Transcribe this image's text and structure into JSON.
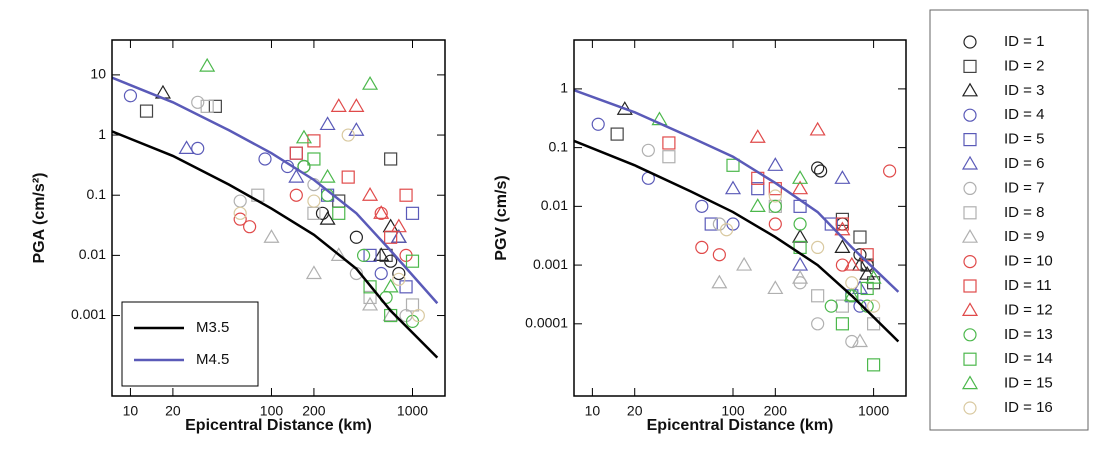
{
  "id_legend": [
    {
      "name": "ID = 1",
      "color": "#222222",
      "marker": "circle"
    },
    {
      "name": "ID = 2",
      "color": "#444444",
      "marker": "square"
    },
    {
      "name": "ID = 3",
      "color": "#222222",
      "marker": "triangle"
    },
    {
      "name": "ID = 4",
      "color": "#5a5ab8",
      "marker": "circle"
    },
    {
      "name": "ID = 5",
      "color": "#5a5ab8",
      "marker": "square"
    },
    {
      "name": "ID = 6",
      "color": "#5a5ab8",
      "marker": "triangle"
    },
    {
      "name": "ID = 7",
      "color": "#b0b0b0",
      "marker": "circle"
    },
    {
      "name": "ID = 8",
      "color": "#b0b0b0",
      "marker": "square"
    },
    {
      "name": "ID = 9",
      "color": "#b0b0b0",
      "marker": "triangle"
    },
    {
      "name": "ID = 10",
      "color": "#e04a4a",
      "marker": "circle"
    },
    {
      "name": "ID = 11",
      "color": "#e04a4a",
      "marker": "square"
    },
    {
      "name": "ID = 12",
      "color": "#e04a4a",
      "marker": "triangle"
    },
    {
      "name": "ID = 13",
      "color": "#4cb84c",
      "marker": "circle"
    },
    {
      "name": "ID = 14",
      "color": "#4cb84c",
      "marker": "square"
    },
    {
      "name": "ID = 15",
      "color": "#4cb84c",
      "marker": "triangle"
    },
    {
      "name": "ID = 16",
      "color": "#d9c9a0",
      "marker": "circle"
    }
  ],
  "chart_data": [
    {
      "type": "scatter",
      "xlabel": "Epicentral Distance (km)",
      "ylabel": "PGA (cm/s²)",
      "log_x": true,
      "log_y": true,
      "xlim": [
        7.4,
        1700
      ],
      "ylim": [
        4.6e-05,
        38
      ],
      "xticks": [
        10,
        20,
        100,
        200,
        1000
      ],
      "yticks": [
        0.001,
        0.01,
        0.1,
        1,
        10
      ],
      "legend": "lower left",
      "series": [
        {
          "x": [
            170,
            230,
            400,
            700,
            800
          ],
          "values": [
            0.3,
            0.05,
            0.02,
            0.008,
            0.005
          ]
        },
        {
          "x": [
            13,
            40,
            300,
            650,
            700
          ],
          "values": [
            2.5,
            3,
            0.08,
            0.01,
            0.4
          ]
        },
        {
          "x": [
            17,
            250,
            600,
            700,
            800
          ],
          "values": [
            5,
            0.04,
            0.01,
            0.03,
            0.02
          ]
        },
        {
          "x": [
            10,
            30,
            90,
            130,
            600
          ],
          "values": [
            4.5,
            0.6,
            0.4,
            0.3,
            0.005
          ]
        },
        {
          "x": [
            150,
            250,
            500,
            900,
            1000
          ],
          "values": [
            0.5,
            0.1,
            0.01,
            0.003,
            0.05
          ]
        },
        {
          "x": [
            25,
            150,
            250,
            400,
            800
          ],
          "values": [
            0.6,
            0.2,
            1.5,
            1.2,
            0.02
          ]
        },
        {
          "x": [
            30,
            60,
            200,
            400,
            900
          ],
          "values": [
            3.5,
            0.08,
            0.15,
            0.005,
            0.001
          ]
        },
        {
          "x": [
            35,
            80,
            200,
            500,
            1000
          ],
          "values": [
            3,
            0.1,
            0.05,
            0.002,
            0.0015
          ]
        },
        {
          "x": [
            100,
            200,
            300,
            500,
            700
          ],
          "values": [
            0.02,
            0.005,
            0.01,
            0.0015,
            0.001
          ]
        },
        {
          "x": [
            60,
            70,
            150,
            600,
            900
          ],
          "values": [
            0.04,
            0.03,
            0.1,
            0.05,
            0.01
          ]
        },
        {
          "x": [
            150,
            200,
            350,
            700,
            900
          ],
          "values": [
            0.5,
            0.8,
            0.2,
            0.02,
            0.1
          ]
        },
        {
          "x": [
            300,
            400,
            500,
            800,
            600
          ],
          "values": [
            3,
            3,
            0.1,
            0.03,
            0.05
          ]
        },
        {
          "x": [
            170,
            250,
            450,
            650,
            1000
          ],
          "values": [
            0.3,
            0.1,
            0.01,
            0.002,
            0.0008
          ]
        },
        {
          "x": [
            200,
            300,
            500,
            700,
            1000
          ],
          "values": [
            0.4,
            0.05,
            0.003,
            0.001,
            0.008
          ]
        },
        {
          "x": [
            35,
            170,
            250,
            500,
            700
          ],
          "values": [
            14,
            0.9,
            0.2,
            7,
            0.003
          ]
        },
        {
          "x": [
            60,
            200,
            350,
            800,
            1100
          ],
          "values": [
            0.05,
            0.08,
            1,
            0.004,
            0.001
          ]
        }
      ],
      "lines": [
        {
          "name": "M3.5",
          "color": "#000000",
          "x": [
            7.4,
            20,
            50,
            100,
            200,
            400,
            700,
            1500
          ],
          "values": [
            1.15,
            0.45,
            0.15,
            0.06,
            0.022,
            0.006,
            0.0012,
            0.0002
          ]
        },
        {
          "name": "M4.5",
          "color": "#5a5ab8",
          "x": [
            7.4,
            20,
            50,
            100,
            200,
            400,
            700,
            1500
          ],
          "values": [
            9,
            3.5,
            1.2,
            0.5,
            0.18,
            0.05,
            0.012,
            0.0016
          ]
        }
      ]
    },
    {
      "type": "scatter",
      "xlabel": "Epicentral Distance (km)",
      "ylabel": "PGV (cm/s)",
      "log_x": true,
      "log_y": true,
      "xlim": [
        7.4,
        1700
      ],
      "ylim": [
        5.9e-06,
        6.8
      ],
      "xticks": [
        10,
        20,
        100,
        200,
        1000
      ],
      "yticks": [
        0.0001,
        0.001,
        0.01,
        0.1,
        1
      ],
      "series": [
        {
          "x": [
            400,
            420,
            600,
            800,
            900
          ],
          "values": [
            0.045,
            0.04,
            0.005,
            0.0015,
            0.001
          ]
        },
        {
          "x": [
            15,
            600,
            800,
            900,
            1000
          ],
          "values": [
            0.17,
            0.006,
            0.003,
            0.001,
            0.0005
          ]
        },
        {
          "x": [
            17,
            300,
            600,
            800,
            900
          ],
          "values": [
            0.45,
            0.003,
            0.002,
            0.001,
            0.0007
          ]
        },
        {
          "x": [
            11,
            25,
            60,
            100,
            800
          ],
          "values": [
            0.25,
            0.03,
            0.01,
            0.005,
            0.0002
          ]
        },
        {
          "x": [
            70,
            150,
            300,
            500,
            700
          ],
          "values": [
            0.005,
            0.02,
            0.01,
            0.005,
            0.0003
          ]
        },
        {
          "x": [
            100,
            200,
            300,
            600,
            800
          ],
          "values": [
            0.02,
            0.05,
            0.001,
            0.03,
            0.0004
          ]
        },
        {
          "x": [
            25,
            80,
            300,
            400,
            700
          ],
          "values": [
            0.09,
            0.005,
            0.0005,
            0.0001,
            5e-05
          ]
        },
        {
          "x": [
            35,
            200,
            400,
            600,
            1000
          ],
          "values": [
            0.07,
            0.01,
            0.0003,
            0.0002,
            0.0001
          ]
        },
        {
          "x": [
            80,
            120,
            200,
            300,
            800
          ],
          "values": [
            0.0005,
            0.001,
            0.0004,
            0.0006,
            5e-05
          ]
        },
        {
          "x": [
            60,
            80,
            200,
            600,
            1300
          ],
          "values": [
            0.002,
            0.0015,
            0.005,
            0.001,
            0.04
          ]
        },
        {
          "x": [
            35,
            150,
            200,
            600,
            900
          ],
          "values": [
            0.12,
            0.03,
            0.02,
            0.005,
            0.0015
          ]
        },
        {
          "x": [
            150,
            300,
            400,
            600,
            700
          ],
          "values": [
            0.15,
            0.02,
            0.2,
            0.004,
            0.001
          ]
        },
        {
          "x": [
            200,
            300,
            500,
            700,
            900
          ],
          "values": [
            0.01,
            0.005,
            0.0002,
            0.0003,
            0.0002
          ]
        },
        {
          "x": [
            100,
            300,
            600,
            900,
            1000
          ],
          "values": [
            0.05,
            0.002,
            0.0001,
            0.0004,
            2e-05
          ]
        },
        {
          "x": [
            30,
            150,
            300,
            700,
            1000
          ],
          "values": [
            0.3,
            0.01,
            0.03,
            0.0003,
            0.0006
          ]
        },
        {
          "x": [
            90,
            200,
            400,
            700,
            1000
          ],
          "values": [
            0.004,
            0.015,
            0.002,
            0.0005,
            0.0002
          ]
        }
      ],
      "lines": [
        {
          "color": "#000000",
          "x": [
            7.4,
            20,
            50,
            100,
            200,
            400,
            700,
            1500
          ],
          "values": [
            0.13,
            0.05,
            0.018,
            0.008,
            0.003,
            0.001,
            0.0003,
            5e-05
          ]
        },
        {
          "color": "#5a5ab8",
          "x": [
            7.4,
            20,
            50,
            100,
            200,
            400,
            700,
            1500
          ],
          "values": [
            0.95,
            0.4,
            0.15,
            0.07,
            0.025,
            0.008,
            0.002,
            0.00035
          ]
        }
      ]
    }
  ]
}
